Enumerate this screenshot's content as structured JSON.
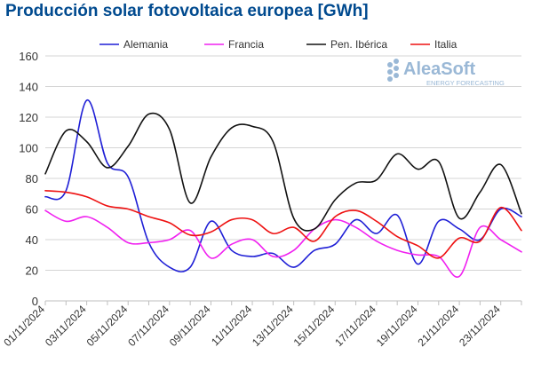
{
  "title": "Producción solar fotovoltaica europea [GWh]",
  "watermark": {
    "brand": "AleaSoft",
    "tagline": "ENERGY FORECASTING",
    "color": "#9ab8d6"
  },
  "chart_data": {
    "type": "line",
    "title": "Producción solar fotovoltaica europea [GWh]",
    "xlabel": "",
    "ylabel": "",
    "ylim": [
      0,
      160
    ],
    "yticks": [
      0,
      20,
      40,
      60,
      80,
      100,
      120,
      140,
      160
    ],
    "grid": true,
    "legend_position": "top",
    "x": [
      "01/11/2024",
      "02/11/2024",
      "03/11/2024",
      "04/11/2024",
      "05/11/2024",
      "06/11/2024",
      "07/11/2024",
      "08/11/2024",
      "09/11/2024",
      "10/11/2024",
      "11/11/2024",
      "12/11/2024",
      "13/11/2024",
      "14/11/2024",
      "15/11/2024",
      "16/11/2024",
      "17/11/2024",
      "18/11/2024",
      "19/11/2024",
      "20/11/2024",
      "21/11/2024",
      "22/11/2024",
      "23/11/2024",
      "24/11/2024"
    ],
    "xtick_labels": [
      "01/11/2024",
      "03/11/2024",
      "05/11/2024",
      "07/11/2024",
      "09/11/2024",
      "11/11/2024",
      "13/11/2024",
      "15/11/2024",
      "17/11/2024",
      "19/11/2024",
      "21/11/2024",
      "23/11/2024"
    ],
    "series": [
      {
        "name": "Alemania",
        "color": "#1f1fd6",
        "values": [
          68,
          72,
          131,
          90,
          81,
          38,
          22,
          22,
          52,
          33,
          29,
          31,
          22,
          33,
          37,
          53,
          44,
          56,
          24,
          52,
          47,
          40,
          60,
          55
        ]
      },
      {
        "name": "Francia",
        "color": "#f020f0",
        "values": [
          59,
          52,
          55,
          48,
          38,
          38,
          40,
          46,
          28,
          37,
          40,
          29,
          33,
          47,
          53,
          48,
          39,
          33,
          30,
          29,
          16,
          48,
          40,
          32
        ]
      },
      {
        "name": "Pen. Ibérica",
        "color": "#111111",
        "values": [
          83,
          111,
          104,
          87,
          101,
          122,
          112,
          64,
          94,
          113,
          114,
          104,
          54,
          47,
          66,
          77,
          79,
          96,
          86,
          91,
          54,
          71,
          89,
          57
        ]
      },
      {
        "name": "Italia",
        "color": "#ee1111",
        "values": [
          72,
          71,
          68,
          62,
          60,
          55,
          51,
          43,
          45,
          53,
          53,
          44,
          48,
          39,
          55,
          59,
          52,
          42,
          36,
          28,
          41,
          39,
          61,
          46
        ]
      }
    ]
  }
}
